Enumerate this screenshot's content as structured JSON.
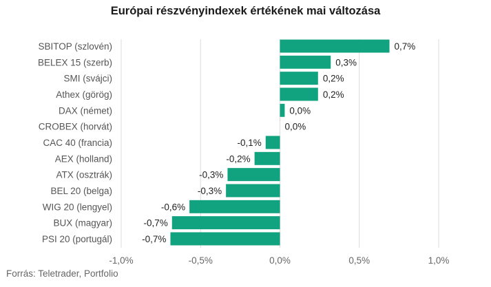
{
  "chart_data": {
    "type": "bar",
    "orientation": "horizontal",
    "title": "Európai részvényindexek értékének mai változása",
    "source": "Forrás: Teletrader, Portfolio",
    "categories": [
      "SBITOP (szlovén)",
      "BELEX 15 (szerb)",
      "SMI (svájci)",
      "Athex (görög)",
      "DAX (német)",
      "CROBEX (horvát)",
      "CAC 40 (francia)",
      "AEX (holland)",
      "ATX (osztrák)",
      "BEL 20 (belga)",
      "WIG 20 (lengyel)",
      "BUX (magyar)",
      "PSI 20 (portugál)"
    ],
    "values": [
      0.69,
      0.32,
      0.24,
      0.24,
      0.03,
      0.0,
      -0.09,
      -0.16,
      -0.33,
      -0.34,
      -0.57,
      -0.68,
      -0.69
    ],
    "data_labels": [
      "0,7%",
      "0,3%",
      "0,2%",
      "0,2%",
      "0,0%",
      "0,0%",
      "-0,1%",
      "-0,2%",
      "-0,3%",
      "-0,3%",
      "-0,6%",
      "-0,7%",
      "-0,7%"
    ],
    "xlim": [
      -1.0,
      1.0
    ],
    "x_ticks": [
      -1.0,
      -0.5,
      0.0,
      0.5,
      1.0
    ],
    "x_tick_labels": [
      "-1,0%",
      "-0,5%",
      "0,0%",
      "0,5%",
      "1,0%"
    ],
    "grid": true,
    "bar_color": "#11a37f",
    "grid_color": "#dcdcdc"
  }
}
